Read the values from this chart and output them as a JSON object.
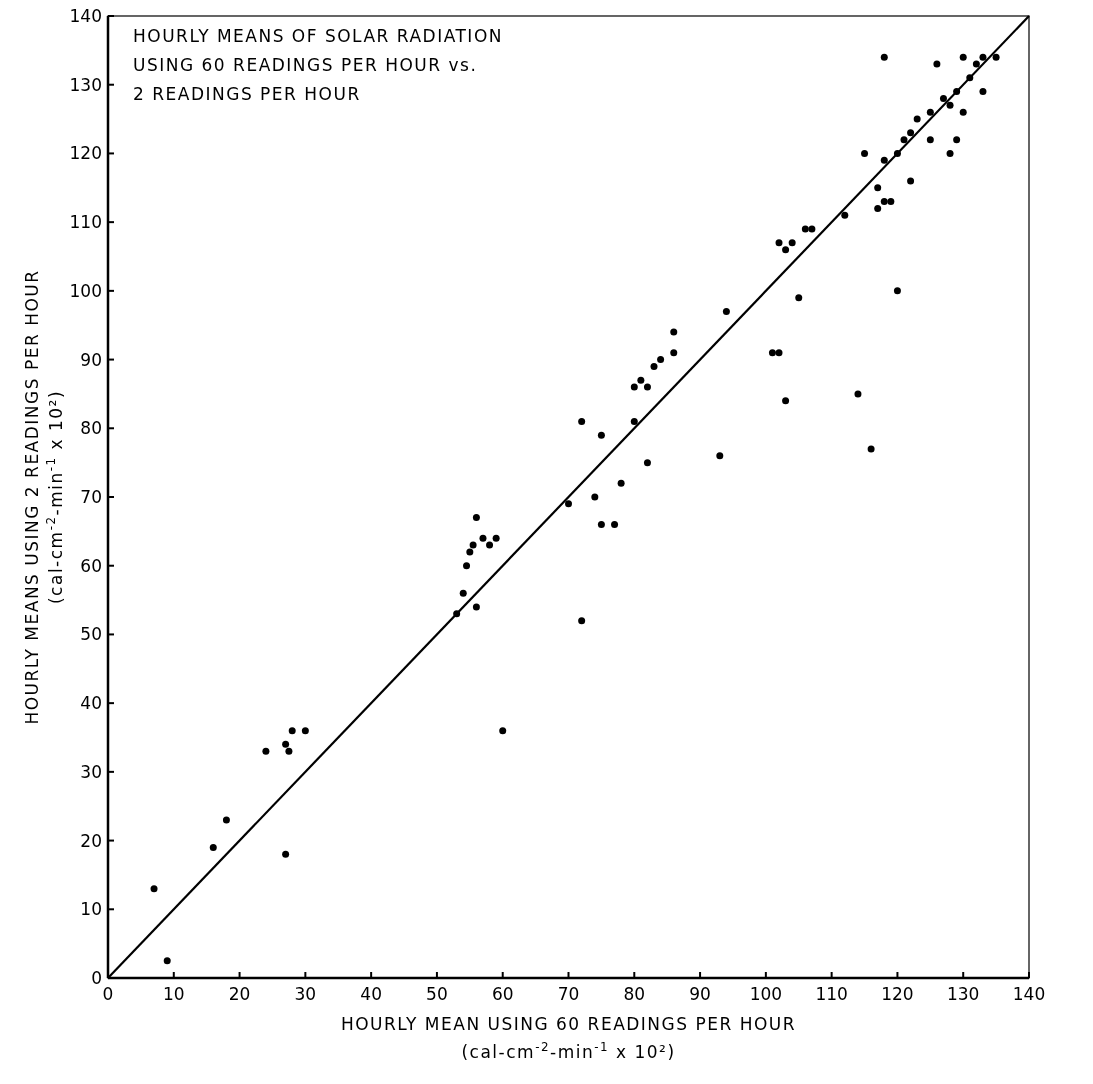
{
  "chart_data": {
    "type": "scatter",
    "title": "HOURLY MEANS OF SOLAR RADIATION\nUSING 60 READINGS PER HOUR  vs.\n2 READINGS PER HOUR",
    "xlabel": "HOURLY MEAN USING 60 READINGS PER HOUR\n(cal-cm$^{-2}$-min$^{-1}$  x 10²)",
    "ylabel": "HOURLY MEANS USING 2 READINGS PER HOUR\n(cal-cm$^{-2}$-min$^{-1}$ x 10²)",
    "xlim": [
      0,
      140
    ],
    "ylim": [
      0,
      140
    ],
    "xticks": [
      0,
      10,
      20,
      30,
      40,
      50,
      60,
      70,
      80,
      90,
      100,
      110,
      120,
      130,
      140
    ],
    "yticks": [
      0,
      10,
      20,
      30,
      40,
      50,
      60,
      70,
      80,
      90,
      100,
      110,
      120,
      130,
      140
    ],
    "series": [
      {
        "marker": "circle",
        "color": "#000000",
        "x": [
          7,
          9,
          16,
          18,
          24,
          27,
          27.5,
          28,
          30,
          27,
          53,
          54,
          54.5,
          55,
          55.5,
          56,
          57,
          58,
          59,
          56,
          60,
          72,
          70,
          72,
          74,
          75,
          75,
          77,
          78,
          80,
          80,
          81,
          82,
          83,
          84,
          86,
          86,
          82,
          93,
          94,
          101,
          102,
          102,
          103,
          104,
          103,
          105,
          106,
          107,
          112,
          114,
          115,
          116,
          117,
          117,
          118,
          119,
          118,
          118,
          120,
          120,
          121,
          122,
          122,
          123,
          125,
          125,
          126,
          127,
          128,
          128,
          129,
          130,
          130,
          131,
          132,
          133,
          133,
          135,
          129
        ],
        "values": [
          13,
          2.5,
          19,
          23,
          33,
          34,
          33,
          36,
          36,
          18,
          53,
          56,
          60,
          62,
          63,
          67,
          64,
          63,
          64,
          54,
          36,
          52,
          69,
          81,
          70,
          79,
          66,
          66,
          72,
          81,
          86,
          87,
          86,
          89,
          90,
          91,
          94,
          75,
          76,
          97,
          91,
          91,
          107,
          106,
          107,
          84,
          99,
          109,
          109,
          111,
          85,
          120,
          77,
          115,
          112,
          113,
          113,
          119,
          134,
          120,
          100,
          122,
          123,
          116,
          125,
          122,
          126,
          133,
          128,
          127,
          120,
          129,
          126,
          134,
          131,
          133,
          129,
          134,
          134,
          122
        ]
      },
      {
        "type": "line",
        "color": "#000000",
        "x": [
          0,
          140
        ],
        "values": [
          0,
          140
        ]
      }
    ]
  }
}
